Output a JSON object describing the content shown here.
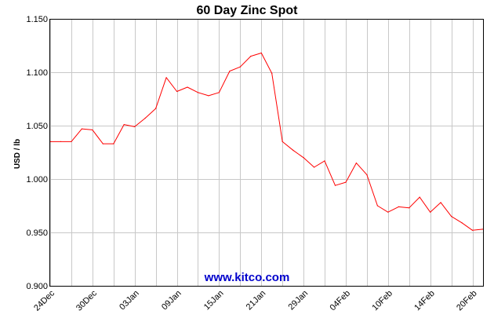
{
  "chart_data": {
    "type": "line",
    "title": "60 Day Zinc Spot",
    "ylabel": "USD / lb",
    "xlabel": "",
    "ylim": [
      0.9,
      1.15
    ],
    "yticks": [
      "0.900",
      "0.950",
      "1.000",
      "1.050",
      "1.100",
      "1.150"
    ],
    "ytick_values": [
      0.9,
      0.95,
      1.0,
      1.05,
      1.1,
      1.15
    ],
    "xticks": [
      "24Dec",
      "30Dec",
      "03Jan",
      "09Jan",
      "15Jan",
      "21Jan",
      "29Jan",
      "04Feb",
      "10Feb",
      "14Feb",
      "20Feb"
    ],
    "xtick_index": [
      0,
      4,
      8,
      12,
      16,
      20,
      24,
      28,
      32,
      36,
      40
    ],
    "grid": true,
    "series": [
      {
        "color": "#ff0000",
        "values": [
          1.035,
          1.035,
          1.035,
          1.047,
          1.046,
          1.033,
          1.033,
          1.051,
          1.049,
          1.057,
          1.066,
          1.095,
          1.082,
          1.086,
          1.081,
          1.078,
          1.081,
          1.101,
          1.105,
          1.115,
          1.118,
          1.099,
          1.035,
          1.027,
          1.02,
          1.011,
          1.017,
          0.994,
          0.997,
          1.015,
          1.004,
          0.975,
          0.969,
          0.974,
          0.973,
          0.983,
          0.969,
          0.978,
          0.965,
          0.959,
          0.952,
          0.953
        ]
      }
    ]
  },
  "watermark": {
    "text": "www.kitco.com",
    "color": "#0000cc"
  }
}
